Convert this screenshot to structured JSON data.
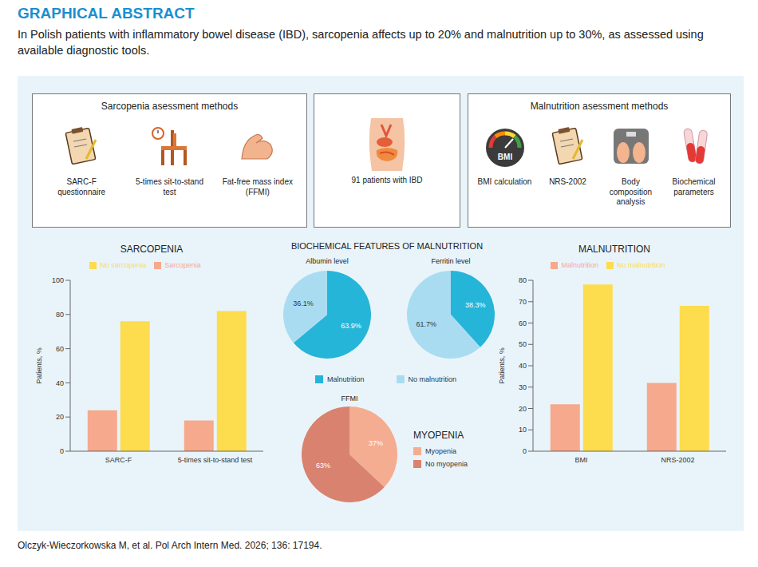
{
  "header": {
    "title": "GRAPHICAL ABSTRACT",
    "subtitle": "In Polish patients with inflammatory bowel disease (IBD), sarcopenia affects up to 20% and malnutrition up to 30%, as assessed using available diagnostic tools."
  },
  "boxes": [
    {
      "title": "Sarcopenia asessment methods",
      "items": [
        {
          "label": "SARC-F questionnaire"
        },
        {
          "label": "5-times sit-to-stand test"
        },
        {
          "label": "Fat-free mass index (FFMI)"
        }
      ]
    },
    {
      "items": [
        {
          "label": "91 patients with IBD"
        }
      ]
    },
    {
      "title": "Malnutrition asessment methods",
      "items": [
        {
          "label": "BMI calculation",
          "icon_text": "BMI"
        },
        {
          "label": "NRS-2002"
        },
        {
          "label": "Body composition analysis"
        },
        {
          "label": "Biochemical parameters"
        }
      ]
    }
  ],
  "middle_title": "BIOCHEMICAL FEATURES OF MALNUTRITION",
  "chart_data": [
    {
      "type": "bar",
      "title": "SARCOPENIA",
      "categories": [
        "SARC-F",
        "5-times sit-to-stand test"
      ],
      "series": [
        {
          "name": "Sarcopenia",
          "color": "#f6a98c",
          "values": [
            24,
            18
          ]
        },
        {
          "name": "No sarcopenia",
          "color": "#fddc4e",
          "values": [
            76,
            82
          ]
        }
      ],
      "ylim": [
        0,
        100
      ],
      "yticks": [
        0,
        20,
        40,
        60,
        80,
        100
      ],
      "y_label": "Patients, %",
      "legend": "top"
    },
    {
      "type": "pie",
      "title": "Albumin level",
      "categories": [
        "Malnutrition",
        "No malnutrition"
      ],
      "values": [
        63.9,
        36.1
      ],
      "value_labels": [
        "63.9%",
        "36.1%"
      ],
      "colors": [
        "#25b5d8",
        "#a9dcf1"
      ],
      "data_labels": true,
      "legend": "bottom"
    },
    {
      "type": "pie",
      "title": "Ferritin level",
      "categories": [
        "Malnutrition",
        "No malnutrition"
      ],
      "values": [
        38.3,
        61.7
      ],
      "value_labels": [
        "38.3%",
        "61.7%"
      ],
      "colors": [
        "#25b5d8",
        "#a9dcf1"
      ],
      "data_labels": true,
      "legend": "bottom"
    },
    {
      "type": "pie",
      "title": "FFMI",
      "legend_title": "MYOPENIA",
      "categories": [
        "Myopenia",
        "No myopenia"
      ],
      "values": [
        37,
        63
      ],
      "value_labels": [
        "37%",
        "63%"
      ],
      "colors": [
        "#f4ad90",
        "#d9826f"
      ],
      "data_labels": true,
      "legend": "right"
    },
    {
      "type": "bar",
      "title": "MALNUTRITION",
      "categories": [
        "BMI",
        "NRS-2002"
      ],
      "series": [
        {
          "name": "Malnutrition",
          "color": "#f6a98c",
          "values": [
            22,
            32
          ]
        },
        {
          "name": "No malnutrition",
          "color": "#fddc4e",
          "values": [
            78,
            68
          ]
        }
      ],
      "ylim": [
        0,
        80
      ],
      "yticks": [
        0,
        10,
        20,
        30,
        40,
        50,
        60,
        70,
        80
      ],
      "y_label": "Patients, %",
      "legend": "top"
    }
  ],
  "footer": "Olczyk-Wieczorkowska M, et al. Pol Arch Intern Med. 2026; 136: 17194."
}
